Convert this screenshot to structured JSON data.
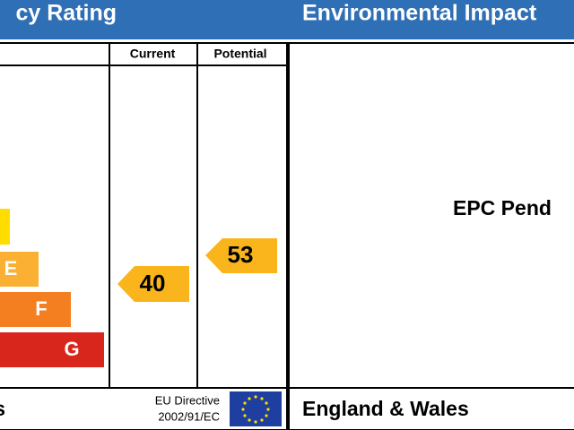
{
  "energy": {
    "title": "cy Rating",
    "columns": [
      "Current",
      "Potential"
    ],
    "bands": [
      "E",
      "F",
      "G"
    ],
    "current": 40,
    "potential": 53,
    "region": "s",
    "directive": [
      "EU Directive",
      "2002/91/EC"
    ]
  },
  "environment": {
    "title": "Environmental Impact",
    "note": "EPC Pend",
    "region": "England & Wales"
  }
}
